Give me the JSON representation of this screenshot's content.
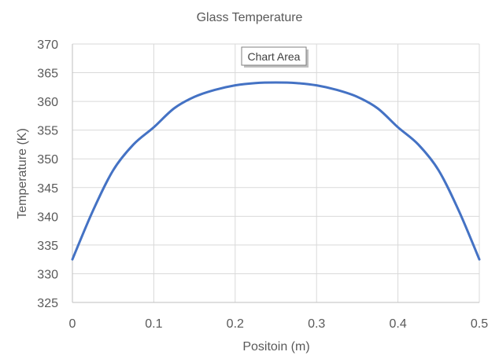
{
  "chart_data": {
    "type": "line",
    "title": "Glass Temperature",
    "xlabel": "Positoin (m)",
    "ylabel": "Temperature (K)",
    "xlim": [
      0,
      0.5
    ],
    "ylim": [
      325,
      370
    ],
    "xticks": [
      0,
      0.1,
      0.2,
      0.3,
      0.4,
      0.5
    ],
    "xtick_labels": [
      "0",
      "0.1",
      "0.2",
      "0.3",
      "0.4",
      "0.5"
    ],
    "yticks": [
      325,
      330,
      335,
      340,
      345,
      350,
      355,
      360,
      365,
      370
    ],
    "ytick_labels": [
      "325",
      "330",
      "335",
      "340",
      "345",
      "350",
      "355",
      "360",
      "365",
      "370"
    ],
    "grid": true,
    "series": [
      {
        "color": "#4472c4",
        "x": [
          0,
          0.025,
          0.05,
          0.075,
          0.1,
          0.125,
          0.15,
          0.175,
          0.2,
          0.225,
          0.25,
          0.275,
          0.3,
          0.325,
          0.35,
          0.375,
          0.4,
          0.425,
          0.45,
          0.475,
          0.5
        ],
        "y": [
          332.5,
          340.9,
          348.0,
          352.5,
          355.5,
          358.8,
          360.8,
          362.0,
          362.8,
          363.2,
          363.3,
          363.2,
          362.8,
          362.0,
          360.8,
          358.8,
          355.5,
          352.5,
          348.0,
          340.9,
          332.5
        ]
      }
    ]
  },
  "tooltip": {
    "label": "Chart Area"
  }
}
